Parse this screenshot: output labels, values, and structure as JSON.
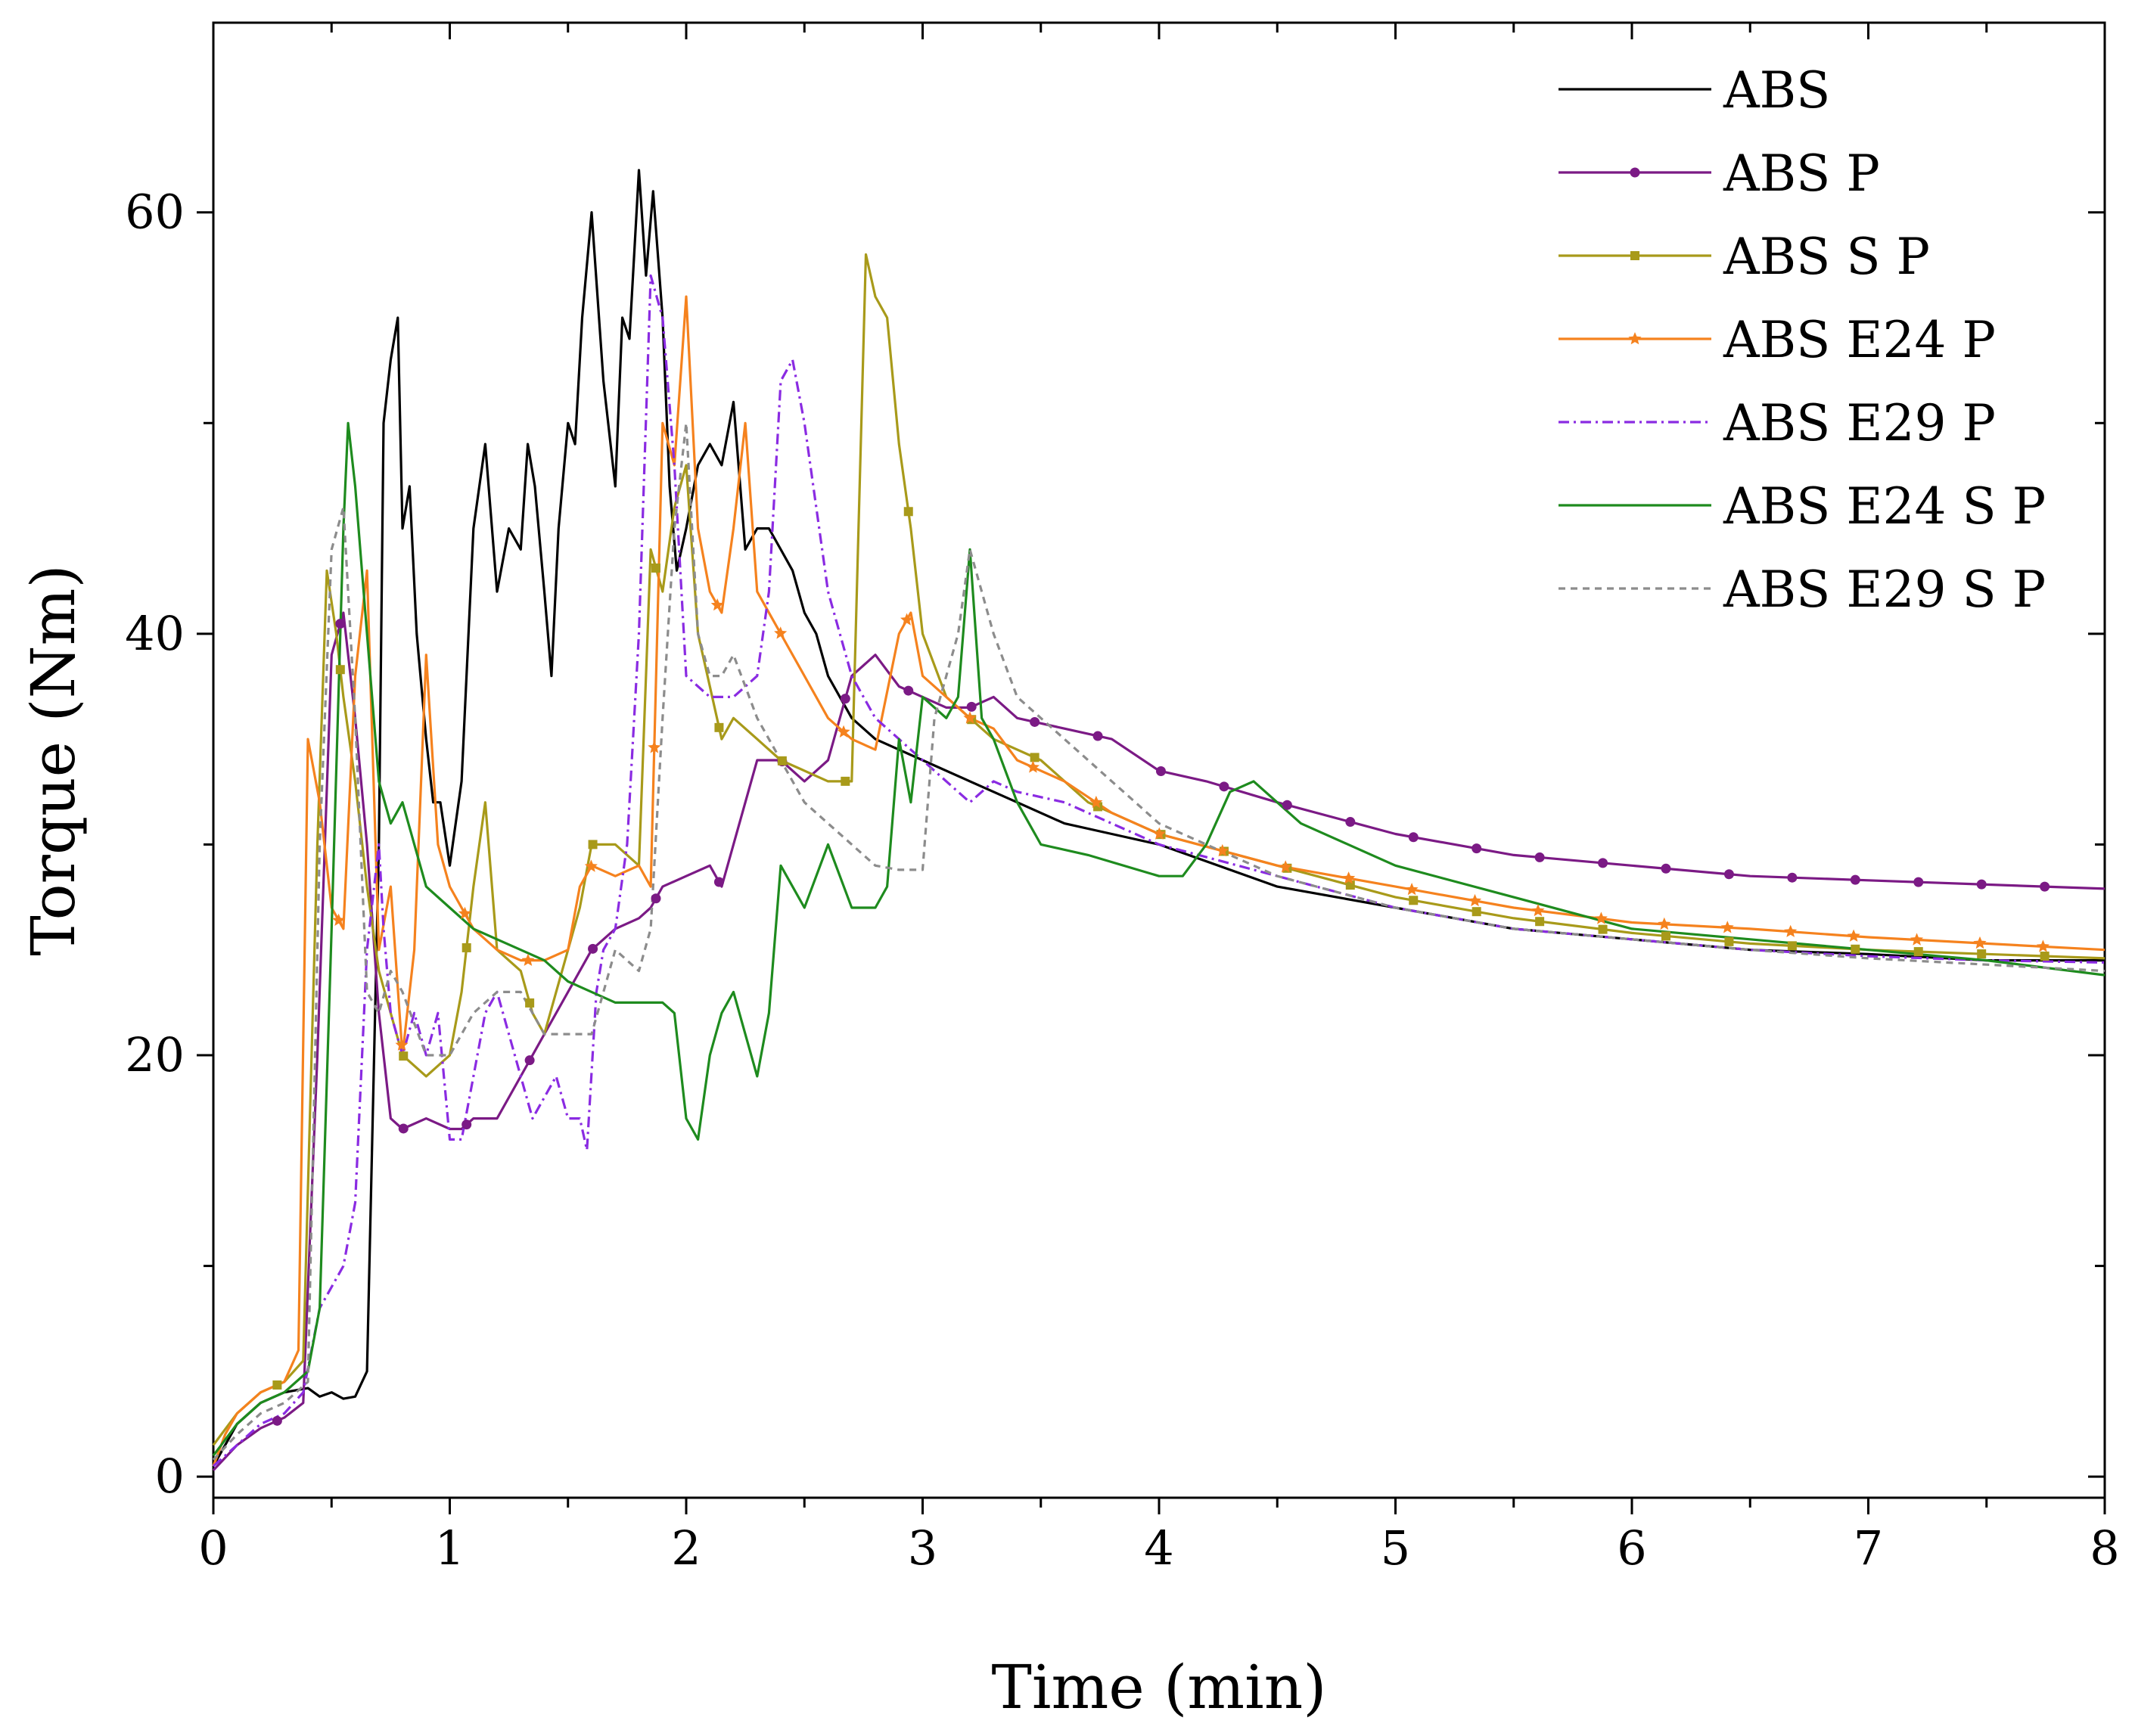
{
  "chart_data": {
    "type": "line",
    "title": "",
    "xlabel": "Time (min)",
    "ylabel": "Torque (Nm)",
    "xlim": [
      0,
      8
    ],
    "ylim": [
      -1,
      69
    ],
    "xticks": [
      0,
      1,
      2,
      3,
      4,
      5,
      6,
      7,
      8
    ],
    "yticks": [
      0,
      20,
      40,
      60
    ],
    "legend_position": "top-right",
    "series": [
      {
        "name": "ABS",
        "color": "#000000",
        "dash": "",
        "marker": "none",
        "x": [
          0,
          0.1,
          0.2,
          0.3,
          0.4,
          0.45,
          0.5,
          0.55,
          0.6,
          0.65,
          0.7,
          0.72,
          0.75,
          0.78,
          0.8,
          0.83,
          0.86,
          0.9,
          0.93,
          0.96,
          1.0,
          1.05,
          1.1,
          1.15,
          1.2,
          1.25,
          1.3,
          1.33,
          1.36,
          1.4,
          1.43,
          1.46,
          1.5,
          1.53,
          1.56,
          1.6,
          1.65,
          1.7,
          1.73,
          1.76,
          1.8,
          1.83,
          1.86,
          1.9,
          1.93,
          1.96,
          2.0,
          2.05,
          2.1,
          2.15,
          2.2,
          2.25,
          2.3,
          2.35,
          2.4,
          2.45,
          2.5,
          2.55,
          2.6,
          2.7,
          2.8,
          2.9,
          3.0,
          3.2,
          3.4,
          3.6,
          3.8,
          4.0,
          4.5,
          5.0,
          5.5,
          6.0,
          6.5,
          7.0,
          7.5,
          8.0
        ],
        "y": [
          0.5,
          2.5,
          3.5,
          4.0,
          4.2,
          3.8,
          4.0,
          3.7,
          3.8,
          5.0,
          30,
          50,
          53,
          55,
          45,
          47,
          40,
          35,
          32,
          32,
          29,
          33,
          45,
          49,
          42,
          45,
          44,
          49,
          47,
          42,
          38,
          45,
          50,
          49,
          55,
          60,
          52,
          47,
          55,
          54,
          62,
          57,
          61,
          55,
          47,
          43,
          45,
          48,
          49,
          48,
          51,
          44,
          45,
          45,
          44,
          43,
          41,
          40,
          38,
          36,
          35,
          34.5,
          34,
          33,
          32,
          31,
          30.5,
          30,
          28,
          27,
          26,
          25.5,
          25,
          24.8,
          24.5,
          24.5
        ]
      },
      {
        "name": "ABS P",
        "color": "#7b1a85",
        "dash": "",
        "marker": "circle",
        "x": [
          0,
          0.1,
          0.2,
          0.3,
          0.38,
          0.44,
          0.5,
          0.55,
          0.6,
          0.65,
          0.7,
          0.75,
          0.8,
          0.9,
          1.0,
          1.05,
          1.1,
          1.2,
          1.3,
          1.4,
          1.5,
          1.6,
          1.7,
          1.8,
          1.85,
          1.9,
          2.0,
          2.1,
          2.15,
          2.2,
          2.3,
          2.4,
          2.5,
          2.6,
          2.7,
          2.8,
          2.9,
          3.0,
          3.1,
          3.2,
          3.3,
          3.4,
          3.6,
          3.8,
          4.0,
          4.2,
          4.5,
          5.0,
          5.5,
          6.0,
          6.5,
          7.0,
          7.5,
          8.0
        ],
        "y": [
          0.3,
          1.5,
          2.3,
          2.8,
          3.5,
          20,
          39,
          41,
          36,
          30,
          22,
          17,
          16.5,
          17,
          16.5,
          16.5,
          17,
          17,
          19,
          21,
          23,
          25,
          26,
          26.5,
          27,
          28,
          28.5,
          29,
          28,
          30,
          34,
          34,
          33,
          34,
          38,
          39,
          37.5,
          37,
          36.5,
          36.5,
          37,
          36,
          35.5,
          35,
          33.5,
          33,
          32,
          30.5,
          29.5,
          29,
          28.5,
          28.3,
          28.1,
          27.9
        ]
      },
      {
        "name": "ABS S P",
        "color": "#a89a1a",
        "dash": "",
        "marker": "square",
        "x": [
          0,
          0.1,
          0.2,
          0.3,
          0.38,
          0.44,
          0.48,
          0.52,
          0.55,
          0.6,
          0.65,
          0.7,
          0.75,
          0.8,
          0.9,
          1.0,
          1.05,
          1.1,
          1.15,
          1.2,
          1.3,
          1.35,
          1.4,
          1.45,
          1.5,
          1.55,
          1.6,
          1.7,
          1.8,
          1.85,
          1.9,
          1.95,
          2.0,
          2.05,
          2.1,
          2.15,
          2.2,
          2.3,
          2.4,
          2.5,
          2.6,
          2.7,
          2.76,
          2.8,
          2.85,
          2.9,
          2.95,
          3.0,
          3.1,
          3.2,
          3.3,
          3.5,
          3.7,
          4.0,
          4.5,
          5.0,
          5.5,
          6.0,
          6.5,
          7.0,
          7.5,
          8.0
        ],
        "y": [
          1.5,
          3.0,
          4.0,
          4.5,
          5.5,
          30,
          43,
          40,
          37,
          33,
          28,
          24,
          22,
          20,
          19,
          20,
          23,
          28,
          32,
          25,
          24,
          22,
          21,
          23,
          25,
          27,
          30,
          30,
          29,
          44,
          42,
          46,
          48,
          40,
          37.5,
          35,
          36,
          35,
          34,
          33.5,
          33,
          33,
          58,
          56,
          55,
          49,
          45,
          40,
          37,
          36,
          35,
          34,
          32,
          30.5,
          29,
          27.5,
          26.5,
          25.8,
          25.3,
          25,
          24.8,
          24.6
        ]
      },
      {
        "name": "ABS E24 P",
        "color": "#f5821e",
        "dash": "",
        "marker": "star",
        "x": [
          0,
          0.05,
          0.1,
          0.2,
          0.3,
          0.36,
          0.4,
          0.45,
          0.5,
          0.55,
          0.6,
          0.65,
          0.7,
          0.75,
          0.8,
          0.85,
          0.9,
          0.95,
          1.0,
          1.05,
          1.1,
          1.2,
          1.3,
          1.4,
          1.5,
          1.55,
          1.6,
          1.7,
          1.8,
          1.85,
          1.9,
          1.95,
          2.0,
          2.05,
          2.1,
          2.15,
          2.2,
          2.25,
          2.3,
          2.4,
          2.5,
          2.6,
          2.7,
          2.8,
          2.9,
          2.95,
          3.0,
          3.1,
          3.2,
          3.3,
          3.4,
          3.6,
          3.8,
          4.0,
          4.5,
          5.0,
          5.5,
          6.0,
          6.5,
          7.0,
          7.5,
          8.0
        ],
        "y": [
          0.5,
          2.0,
          3.0,
          4.0,
          4.5,
          6.0,
          35,
          32,
          27,
          26,
          38,
          43,
          25,
          28,
          20,
          25,
          39,
          30,
          28,
          27,
          26,
          25,
          24.5,
          24.5,
          25,
          28,
          29,
          28.5,
          29,
          28,
          50,
          48,
          56,
          45,
          42,
          41,
          45,
          50,
          42,
          40,
          38,
          36,
          35,
          34.5,
          40,
          41,
          38,
          37,
          36,
          35.5,
          34,
          33,
          31.5,
          30.5,
          29,
          28,
          27,
          26.3,
          26,
          25.6,
          25.3,
          25.0
        ]
      },
      {
        "name": "ABS E29 P",
        "color": "#8a2be2",
        "dash": "14,6,3,6",
        "marker": "none",
        "x": [
          0,
          0.1,
          0.2,
          0.3,
          0.38,
          0.45,
          0.5,
          0.55,
          0.6,
          0.65,
          0.7,
          0.72,
          0.75,
          0.8,
          0.85,
          0.9,
          0.95,
          1.0,
          1.05,
          1.1,
          1.15,
          1.2,
          1.25,
          1.3,
          1.35,
          1.4,
          1.45,
          1.5,
          1.55,
          1.58,
          1.62,
          1.65,
          1.7,
          1.75,
          1.8,
          1.85,
          1.9,
          1.95,
          2.0,
          2.1,
          2.2,
          2.3,
          2.35,
          2.4,
          2.45,
          2.5,
          2.55,
          2.6,
          2.7,
          2.8,
          2.9,
          3.0,
          3.1,
          3.2,
          3.3,
          3.4,
          3.6,
          3.8,
          4.0,
          4.5,
          5.0,
          5.5,
          6.0,
          6.5,
          7.0,
          7.5,
          8.0
        ],
        "y": [
          0.5,
          1.5,
          2.5,
          3.0,
          4.0,
          8.0,
          9.0,
          10,
          13,
          25,
          30,
          26,
          22,
          20,
          22,
          20,
          22,
          16,
          16,
          19,
          22,
          23,
          21,
          19,
          17,
          18,
          19,
          17,
          17,
          15.5,
          23,
          25,
          26,
          30,
          40,
          57,
          55,
          48,
          38,
          37,
          37,
          38,
          42,
          52,
          53,
          50,
          46,
          42,
          38,
          36,
          35,
          34,
          33,
          32,
          33,
          32.5,
          32,
          31,
          30,
          28.5,
          27,
          26,
          25.5,
          25,
          24.7,
          24.5,
          24.4
        ]
      },
      {
        "name": "ABS E24 S P",
        "color": "#1e8b1e",
        "dash": "",
        "marker": "none",
        "x": [
          0,
          0.1,
          0.2,
          0.3,
          0.4,
          0.45,
          0.5,
          0.55,
          0.57,
          0.6,
          0.65,
          0.7,
          0.75,
          0.8,
          0.9,
          1.0,
          1.1,
          1.2,
          1.3,
          1.4,
          1.5,
          1.6,
          1.7,
          1.8,
          1.9,
          1.95,
          2.0,
          2.05,
          2.1,
          2.15,
          2.2,
          2.25,
          2.3,
          2.35,
          2.4,
          2.5,
          2.6,
          2.7,
          2.8,
          2.85,
          2.9,
          2.95,
          3.0,
          3.1,
          3.15,
          3.2,
          3.25,
          3.3,
          3.4,
          3.5,
          3.7,
          4.0,
          4.1,
          4.2,
          4.3,
          4.4,
          4.6,
          4.8,
          5.0,
          5.5,
          6.0,
          6.5,
          7.0,
          7.5,
          8.0
        ],
        "y": [
          1.0,
          2.5,
          3.5,
          4.0,
          5.0,
          8.0,
          26,
          45,
          50,
          47,
          40,
          33,
          31,
          32,
          28,
          27,
          26,
          25.5,
          25,
          24.5,
          23.5,
          23,
          22.5,
          22.5,
          22.5,
          22,
          17,
          16,
          20,
          22,
          23,
          21,
          19,
          22,
          29,
          27,
          30,
          27,
          27,
          28,
          35,
          32,
          37,
          36,
          37,
          44,
          36,
          35,
          32,
          30,
          29.5,
          28.5,
          28.5,
          30,
          32.5,
          33,
          31,
          30,
          29,
          27.5,
          26,
          25.5,
          25,
          24.5,
          23.8
        ]
      },
      {
        "name": "ABS E29 S P",
        "color": "#8c8c8c",
        "dash": "9,7",
        "marker": "none",
        "x": [
          0,
          0.1,
          0.2,
          0.3,
          0.4,
          0.45,
          0.5,
          0.55,
          0.6,
          0.65,
          0.7,
          0.75,
          0.8,
          0.9,
          1.0,
          1.1,
          1.2,
          1.3,
          1.4,
          1.5,
          1.6,
          1.7,
          1.8,
          1.85,
          1.9,
          1.95,
          2.0,
          2.05,
          2.1,
          2.15,
          2.2,
          2.3,
          2.4,
          2.5,
          2.6,
          2.7,
          2.8,
          2.9,
          3.0,
          3.05,
          3.1,
          3.15,
          3.2,
          3.3,
          3.4,
          3.5,
          3.6,
          3.8,
          4.0,
          4.5,
          5.0,
          5.5,
          6.0,
          6.5,
          7.0,
          7.5,
          8.0
        ],
        "y": [
          0.8,
          2.0,
          3.0,
          3.5,
          4.5,
          30,
          44,
          46,
          36,
          23,
          22,
          24,
          23,
          20,
          20,
          22,
          23,
          23,
          21,
          21,
          21,
          25,
          24,
          26,
          36,
          45,
          50,
          40,
          38,
          38,
          39,
          36,
          34,
          32,
          31,
          30,
          29,
          28.8,
          28.8,
          36,
          38,
          40,
          44,
          40,
          37,
          36,
          35,
          33,
          31,
          28.5,
          27,
          26,
          25.5,
          25,
          24.6,
          24.3,
          24.0
        ]
      }
    ]
  }
}
